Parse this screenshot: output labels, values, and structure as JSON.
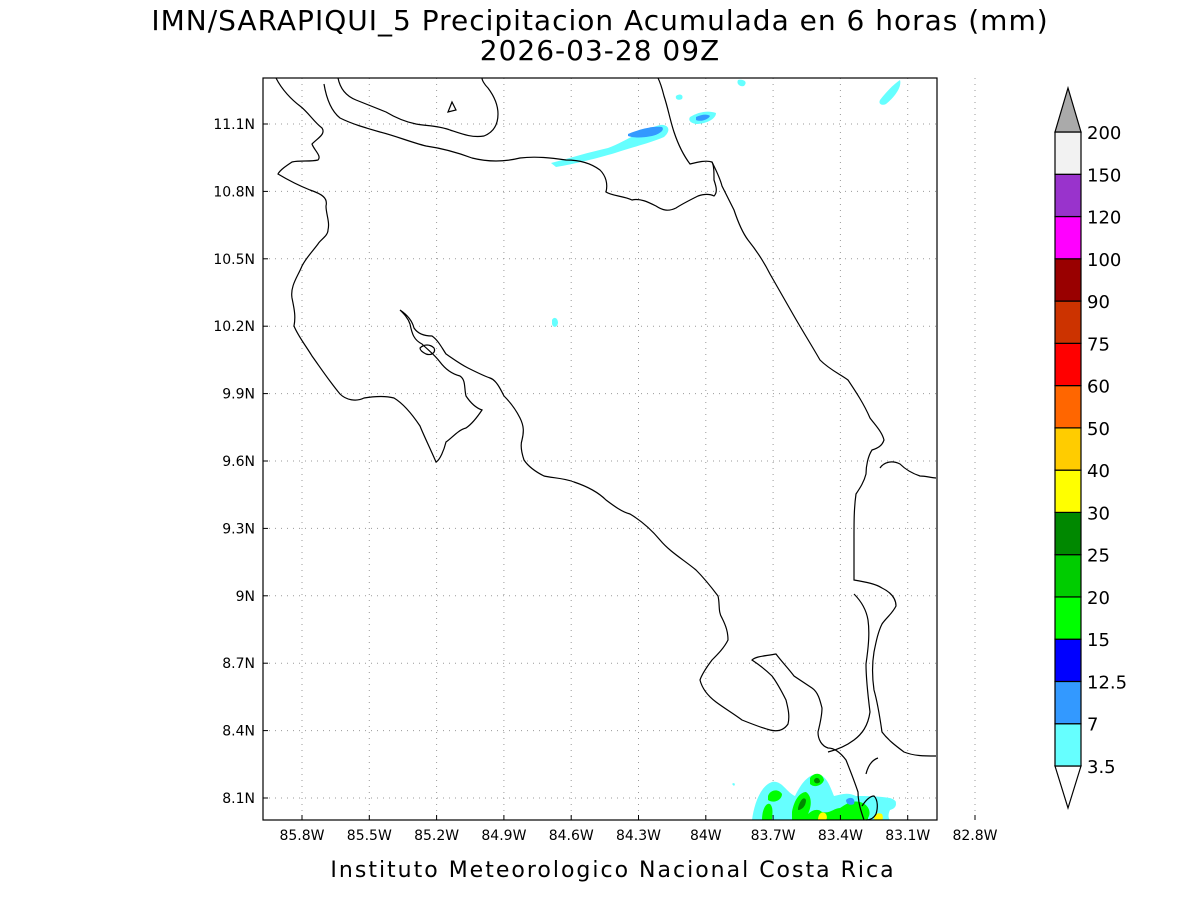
{
  "title": {
    "line1": "IMN/SARAPIQUI_5 Precipitacion Acumulada en 6 horas (mm)",
    "line2": "2026-03-28 09Z"
  },
  "map": {
    "lon_labels": [
      "85.8W",
      "85.5W",
      "85.2W",
      "84.9W",
      "84.6W",
      "84.3W",
      "84W",
      "83.7W",
      "83.4W",
      "83.1W",
      "82.8W"
    ],
    "lat_labels": [
      "11.1N",
      "10.8N",
      "10.5N",
      "10.2N",
      "9.9N",
      "9.6N",
      "9.3N",
      "9N",
      "8.7N",
      "8.4N",
      "8.1N"
    ],
    "grid": "dotted",
    "coastline_color": "#000000"
  },
  "colorbar": {
    "levels": [
      "3.5",
      "7",
      "12.5",
      "15",
      "20",
      "25",
      "30",
      "40",
      "50",
      "60",
      "75",
      "90",
      "100",
      "120",
      "150",
      "200"
    ],
    "colors": [
      "#ffffff",
      "#66ffff",
      "#3399ff",
      "#0000ff",
      "#00ff00",
      "#00cc00",
      "#008800",
      "#ffff00",
      "#ffcc00",
      "#ff6600",
      "#ff0000",
      "#cc3300",
      "#990000",
      "#ff00ff",
      "#9933cc",
      "#f2f2f2",
      "#aaaaaa"
    ]
  },
  "footer": "Instituto Meteorologico Nacional Costa Rica"
}
